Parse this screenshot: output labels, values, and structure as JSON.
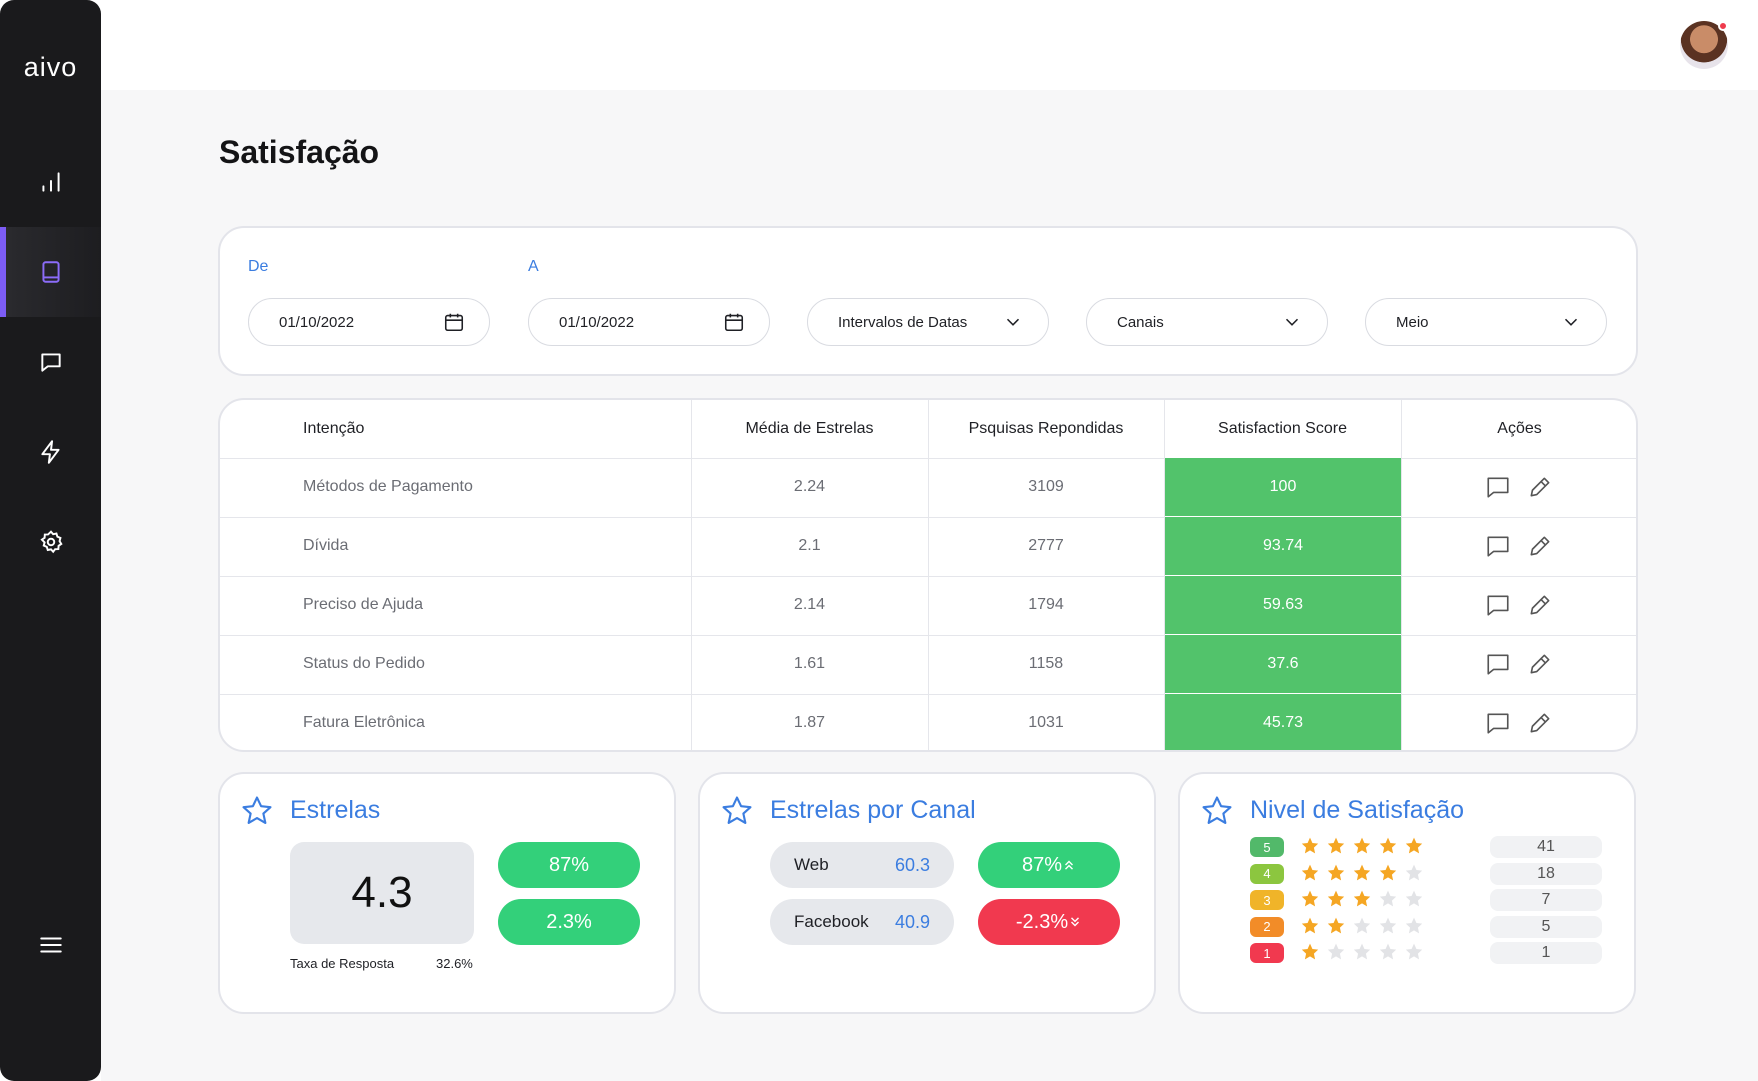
{
  "brand": "aivo",
  "page_title": "Satisfação",
  "filters": {
    "from_label": "De",
    "to_label": "A",
    "from_value": "01/10/2022",
    "to_value": "01/10/2022",
    "interval": "Intervalos de Datas",
    "channels": "Canais",
    "medium": "Meio"
  },
  "table": {
    "headers": [
      "Intenção",
      "Média de Estrelas",
      "Psquisas Repondidas",
      "Satisfaction Score",
      "Ações"
    ],
    "rows": [
      {
        "intent": "Métodos de Pagamento",
        "avg": "2.24",
        "answered": "3109",
        "score": "100"
      },
      {
        "intent": "Dívida",
        "avg": "2.1",
        "answered": "2777",
        "score": "93.74"
      },
      {
        "intent": "Preciso de Ajuda",
        "avg": "2.14",
        "answered": "1794",
        "score": "59.63"
      },
      {
        "intent": "Status do Pedido",
        "avg": "1.61",
        "answered": "1158",
        "score": "37.6"
      },
      {
        "intent": "Fatura Eletrônica",
        "avg": "1.87",
        "answered": "1031",
        "score": "45.73"
      }
    ]
  },
  "stars_panel": {
    "title": "Estrelas",
    "value": "4.3",
    "pill_top": "87%",
    "pill_bottom": "2.3%",
    "response_label": "Taxa de Resposta",
    "response_value": "32.6%"
  },
  "channel_panel": {
    "title": "Estrelas por Canal",
    "channels": [
      {
        "name": "Web",
        "value": "60.3",
        "change": "87%",
        "trend": "up"
      },
      {
        "name": "Facebook",
        "value": "40.9",
        "change": "-2.3%",
        "trend": "down"
      }
    ]
  },
  "level_panel": {
    "title": "Nivel de Satisfação",
    "levels": [
      {
        "level": "5",
        "stars": 5,
        "count": "41",
        "color": "#52b96a"
      },
      {
        "level": "4",
        "stars": 4,
        "count": "18",
        "color": "#8cc63f"
      },
      {
        "level": "3",
        "stars": 3,
        "count": "7",
        "color": "#f0b429"
      },
      {
        "level": "2",
        "stars": 2,
        "count": "5",
        "color": "#f28c28"
      },
      {
        "level": "1",
        "stars": 1,
        "count": "1",
        "color": "#f1394f"
      }
    ]
  },
  "colors": {
    "accent": "#3b7de0",
    "score_green": "#52c36b",
    "pill_green": "#33d07a",
    "pill_red": "#f1394f",
    "sidebar": "#1a1a1c",
    "sidebar_active": "#7c5cf5",
    "star_gold": "#f5a623"
  },
  "icons": [
    "chart-icon",
    "book-icon",
    "chat-icon",
    "bolt-icon",
    "gear-icon",
    "menu-icon",
    "calendar-icon",
    "chevron-down-icon",
    "comment-icon",
    "pencil-icon",
    "star-outline-icon",
    "star-icon"
  ]
}
